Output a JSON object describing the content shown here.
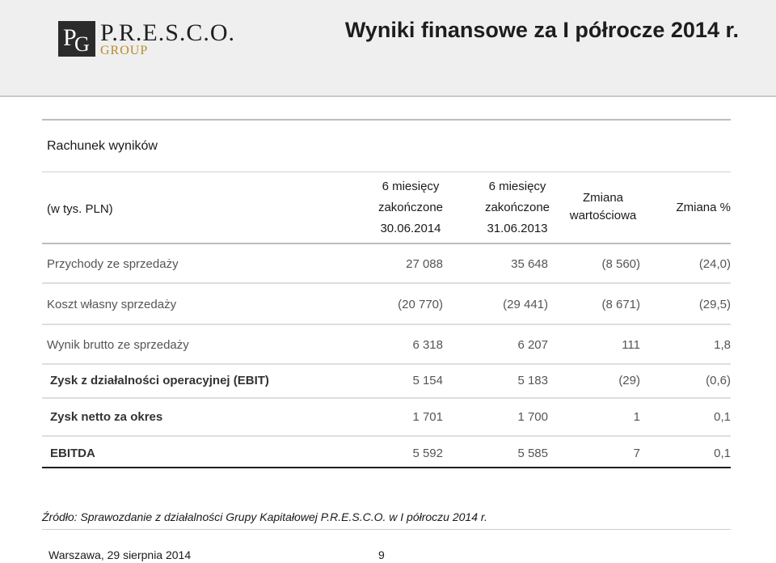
{
  "header": {
    "logo_name": "P.R.E.S.C.O.",
    "logo_group": "GROUP",
    "title": "Wyniki finansowe za I półrocze 2014 r."
  },
  "section_title": "Rachunek wyników",
  "unit_label": "(w tys. PLN)",
  "columns": {
    "c1": [
      "6 miesięcy",
      "zakończone",
      "30.06.2014"
    ],
    "c2": [
      "6 miesięcy",
      "zakończone",
      "31.06.2013"
    ],
    "c3": [
      "Zmiana",
      "wartościowa"
    ],
    "c4": "Zmiana %"
  },
  "rows": [
    {
      "label": "Przychody ze sprzedaży",
      "v1": "27 088",
      "v2": "35 648",
      "v3": "(8 560)",
      "v4": "(24,0)"
    },
    {
      "label": "Koszt własny sprzedaży",
      "v1": "(20 770)",
      "v2": "(29 441)",
      "v3": "(8 671)",
      "v4": "(29,5)"
    },
    {
      "label": "Wynik brutto ze sprzedaży",
      "v1": "6 318",
      "v2": "6 207",
      "v3": "111",
      "v4": "1,8"
    },
    {
      "label": "Zysk z działalności operacyjnej (EBIT)",
      "v1": "5 154",
      "v2": "5 183",
      "v3": "(29)",
      "v4": "(0,6)"
    },
    {
      "label": "Zysk netto za okres",
      "v1": "1 701",
      "v2": "1 700",
      "v3": "1",
      "v4": "0,1"
    },
    {
      "label": "EBITDA",
      "v1": "5 592",
      "v2": "5 585",
      "v3": "7",
      "v4": "0,1"
    }
  ],
  "source": "Źródło:  Sprawozdanie z działalności Grupy Kapitałowej P.R.E.S.C.O. w I półroczu 2014 r.",
  "footer": {
    "place_date": "Warszawa, 29  sierpnia 2014",
    "page": "9"
  }
}
